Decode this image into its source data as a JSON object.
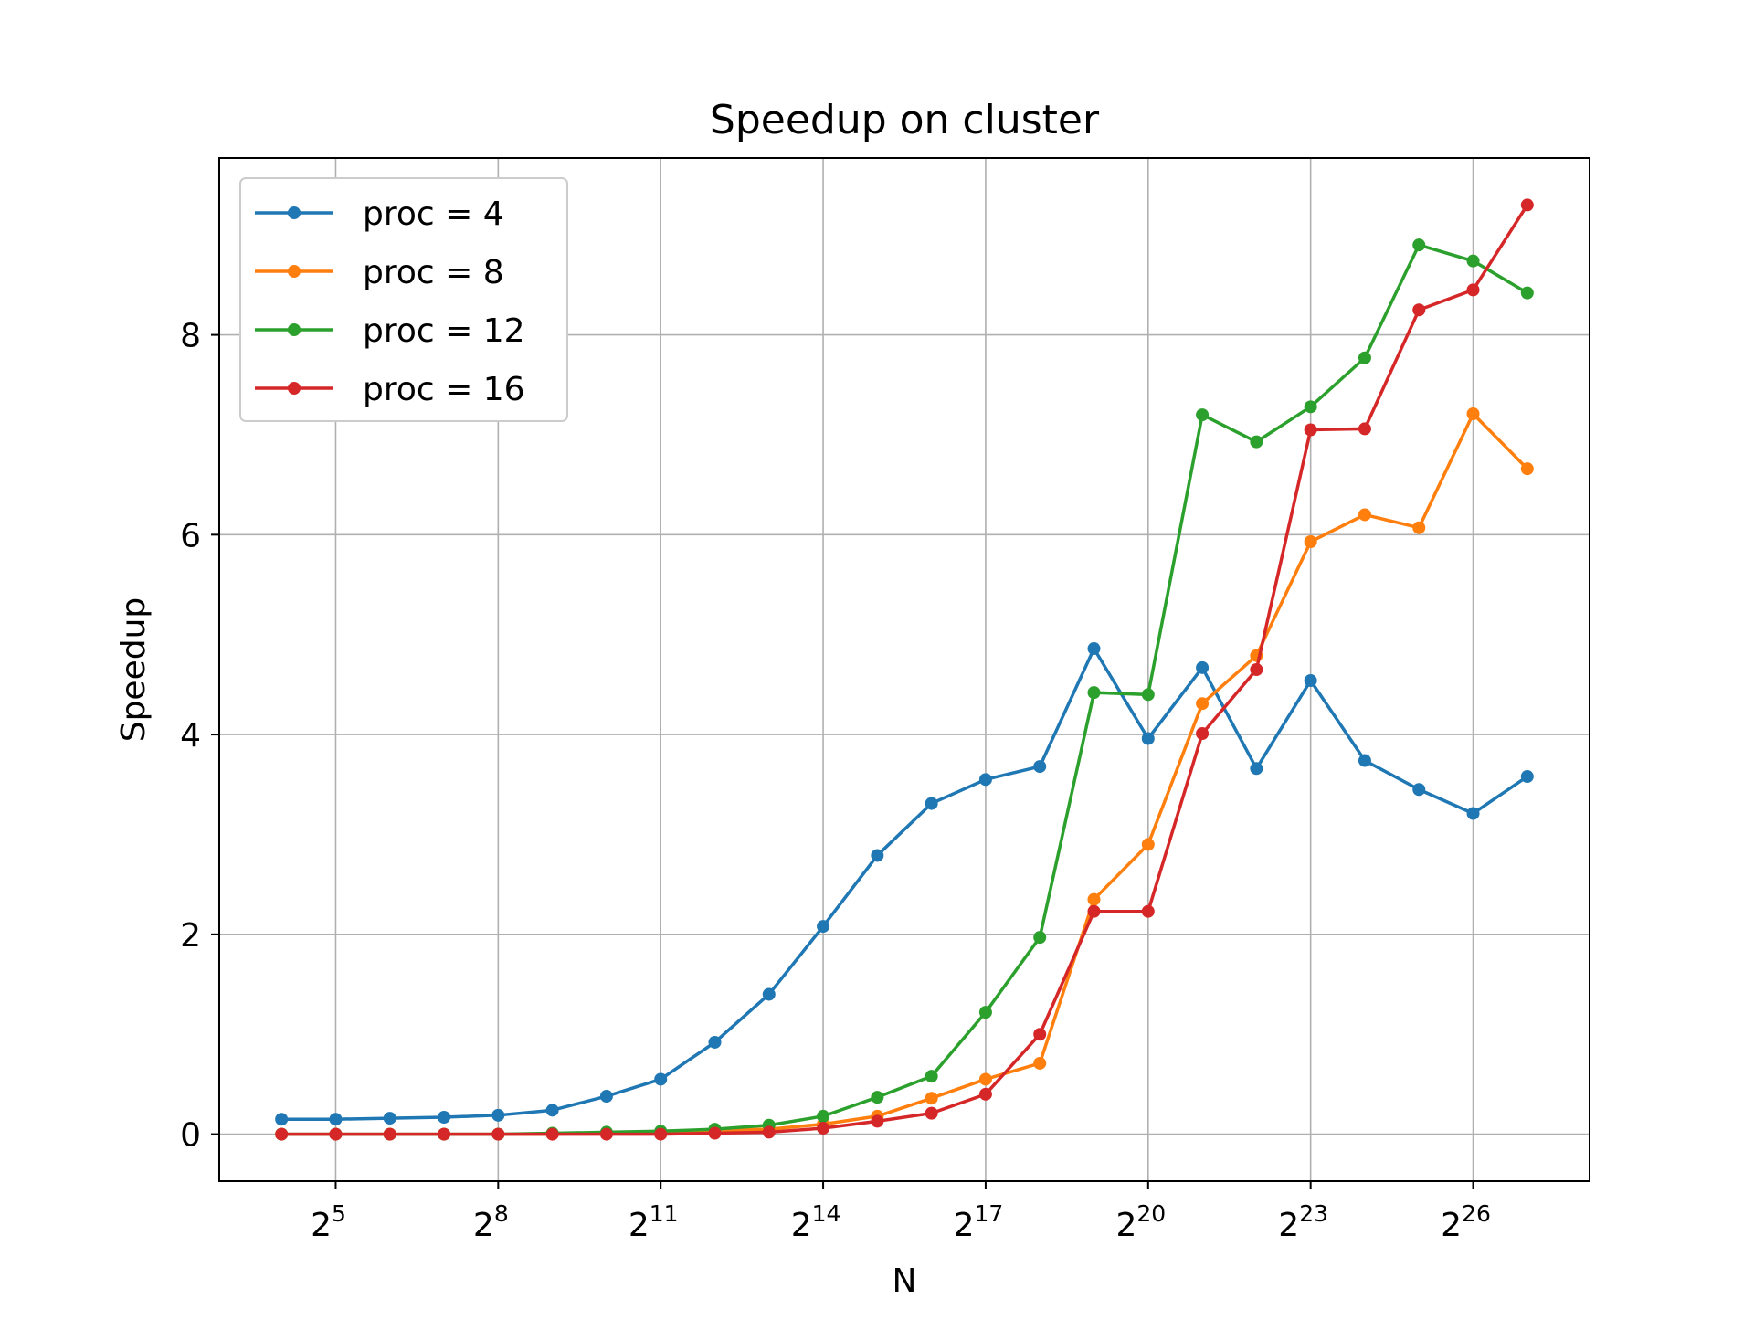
{
  "chart_data": {
    "type": "line",
    "title": "Speedup on cluster",
    "xlabel": "N",
    "ylabel": "Speedup",
    "x_scale": "log2",
    "x": [
      16,
      32,
      64,
      128,
      256,
      512,
      1024,
      2048,
      4096,
      8192,
      16384,
      32768,
      65536,
      131072,
      262144,
      524288,
      1048576,
      2097152,
      4194304,
      8388608,
      16777216,
      33554432,
      67108864,
      134217728
    ],
    "x_ticks": [
      {
        "value": 32,
        "base": "2",
        "exp": "5"
      },
      {
        "value": 256,
        "base": "2",
        "exp": "8"
      },
      {
        "value": 2048,
        "base": "2",
        "exp": "11"
      },
      {
        "value": 16384,
        "base": "2",
        "exp": "14"
      },
      {
        "value": 131072,
        "base": "2",
        "exp": "17"
      },
      {
        "value": 1048576,
        "base": "2",
        "exp": "20"
      },
      {
        "value": 8388608,
        "base": "2",
        "exp": "23"
      },
      {
        "value": 67108864,
        "base": "2",
        "exp": "26"
      }
    ],
    "y_ticks": [
      0,
      2,
      4,
      6,
      8
    ],
    "y_tick_labels": [
      "0",
      "2",
      "4",
      "6",
      "8"
    ],
    "ylim": [
      -0.47,
      9.77
    ],
    "grid": true,
    "legend_position": "upper-left",
    "series": [
      {
        "name": "proc = 4",
        "color": "#1f77b4",
        "values": [
          0.15,
          0.15,
          0.16,
          0.17,
          0.19,
          0.24,
          0.38,
          0.55,
          0.92,
          1.4,
          2.08,
          2.79,
          3.31,
          3.55,
          3.68,
          4.86,
          3.96,
          4.67,
          3.66,
          4.54,
          3.74,
          3.45,
          3.21,
          3.58
        ]
      },
      {
        "name": "proc = 8",
        "color": "#ff7f0e",
        "values": [
          0.0,
          0.0,
          0.0,
          0.0,
          0.0,
          0.0,
          0.01,
          0.02,
          0.04,
          0.05,
          0.1,
          0.18,
          0.36,
          0.55,
          0.71,
          2.35,
          2.9,
          4.31,
          4.79,
          5.93,
          6.2,
          6.07,
          7.21,
          6.66
        ]
      },
      {
        "name": "proc = 12",
        "color": "#2ca02c",
        "values": [
          0.0,
          0.0,
          0.0,
          0.0,
          0.0,
          0.01,
          0.02,
          0.03,
          0.05,
          0.09,
          0.18,
          0.37,
          0.58,
          1.22,
          1.97,
          4.42,
          4.4,
          7.2,
          6.93,
          7.28,
          7.77,
          8.9,
          8.74,
          8.42
        ]
      },
      {
        "name": "proc = 16",
        "color": "#d62728",
        "values": [
          0.0,
          0.0,
          0.0,
          0.0,
          0.0,
          0.0,
          0.0,
          0.0,
          0.01,
          0.02,
          0.06,
          0.13,
          0.21,
          0.4,
          1.0,
          2.23,
          2.23,
          4.01,
          4.65,
          7.05,
          7.06,
          8.25,
          8.45,
          9.3
        ]
      }
    ]
  }
}
